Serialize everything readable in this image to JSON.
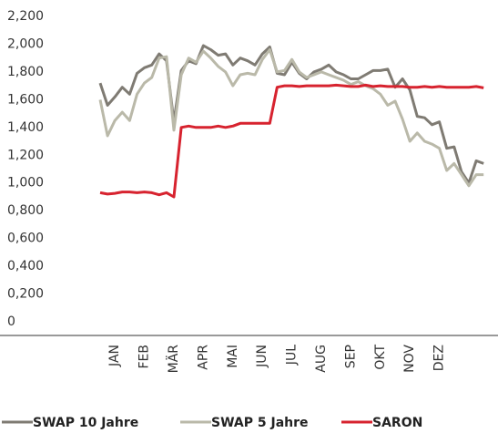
{
  "chart_data": {
    "type": "line",
    "categories": [
      null,
      null,
      "JAN",
      null,
      null,
      null,
      "FEB",
      null,
      null,
      null,
      "MÄR",
      null,
      null,
      null,
      "APR",
      null,
      null,
      null,
      "MAI",
      null,
      null,
      null,
      "JUN",
      null,
      null,
      null,
      "JUL",
      null,
      null,
      null,
      "AUG",
      null,
      null,
      null,
      "SEP",
      null,
      null,
      null,
      "OKT",
      null,
      null,
      null,
      "NOV",
      null,
      null,
      null,
      "DEZ",
      null,
      null,
      null,
      null,
      null,
      null
    ],
    "series": [
      {
        "name": "SWAP 10 Jahre",
        "color": "#7f7b73",
        "values": [
          1720,
          1560,
          1620,
          1690,
          1640,
          1790,
          1830,
          1850,
          1930,
          1880,
          1440,
          1810,
          1880,
          1860,
          1990,
          1960,
          1920,
          1930,
          1850,
          1900,
          1880,
          1850,
          1930,
          1980,
          1790,
          1780,
          1870,
          1790,
          1750,
          1800,
          1820,
          1850,
          1800,
          1780,
          1750,
          1750,
          1780,
          1810,
          1810,
          1820,
          1690,
          1750,
          1670,
          1480,
          1470,
          1420,
          1440,
          1250,
          1260,
          1080,
          1000,
          1160,
          1140
        ]
      },
      {
        "name": "SWAP 5 Jahre",
        "color": "#bab9a9",
        "values": [
          1600,
          1340,
          1450,
          1510,
          1450,
          1640,
          1720,
          1760,
          1900,
          1910,
          1380,
          1780,
          1900,
          1870,
          1950,
          1900,
          1840,
          1800,
          1700,
          1780,
          1790,
          1780,
          1890,
          1960,
          1800,
          1810,
          1890,
          1800,
          1760,
          1780,
          1800,
          1780,
          1760,
          1740,
          1710,
          1730,
          1700,
          1680,
          1640,
          1560,
          1590,
          1460,
          1300,
          1360,
          1300,
          1280,
          1250,
          1090,
          1140,
          1060,
          980,
          1060,
          1060
        ]
      },
      {
        "name": "SARON",
        "color": "#d7232f",
        "values": [
          930,
          920,
          925,
          935,
          935,
          930,
          935,
          930,
          915,
          930,
          900,
          1400,
          1410,
          1400,
          1400,
          1400,
          1410,
          1400,
          1410,
          1430,
          1430,
          1430,
          1430,
          1430,
          1690,
          1700,
          1700,
          1695,
          1700,
          1700,
          1700,
          1700,
          1705,
          1700,
          1695,
          1695,
          1705,
          1695,
          1700,
          1695,
          1695,
          1695,
          1690,
          1690,
          1695,
          1690,
          1695,
          1690,
          1690,
          1690,
          1690,
          1695,
          1685
        ]
      }
    ],
    "ylim": [
      0,
      2200
    ],
    "yticks": [
      0,
      {
        "value": 200,
        "label": "0,200"
      },
      {
        "value": 400,
        "label": "0,400"
      },
      {
        "value": 600,
        "label": "0,600"
      },
      {
        "value": 800,
        "label": "0,800"
      },
      {
        "value": 1000,
        "label": "1,000"
      },
      {
        "value": 1200,
        "label": "1,200"
      },
      {
        "value": 1400,
        "label": "1,400"
      },
      {
        "value": 1600,
        "label": "1,600"
      },
      {
        "value": 1800,
        "label": "1,800"
      },
      {
        "value": 2000,
        "label": "2,000"
      },
      {
        "value": 2200,
        "label": "2,200"
      }
    ],
    "grid": false
  }
}
